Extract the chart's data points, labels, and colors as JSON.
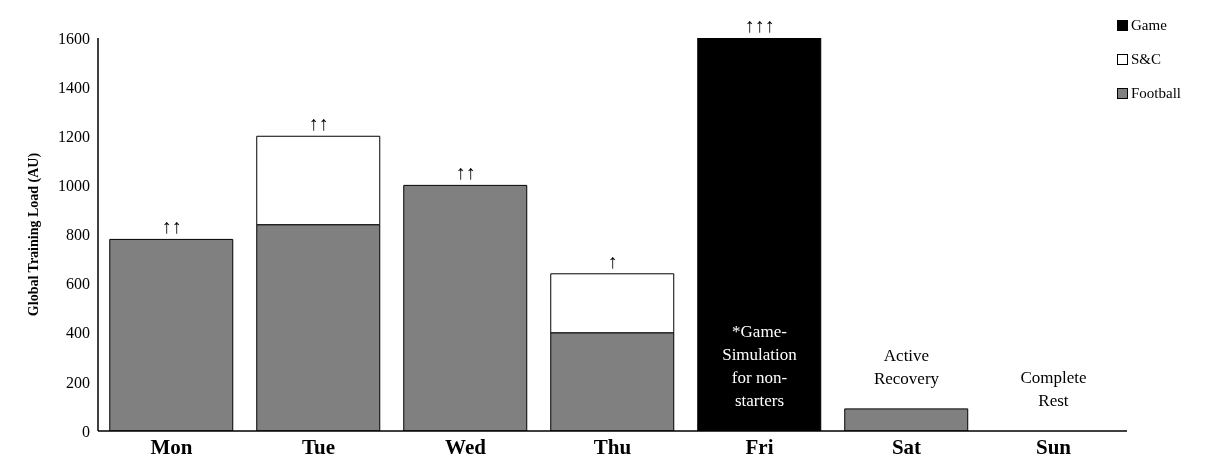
{
  "chart_data": {
    "type": "bar",
    "stacked": true,
    "ylabel": "Global Training Load (AU)",
    "categories": [
      "Mon",
      "Tue",
      "Wed",
      "Thu",
      "Fri",
      "Sat",
      "Sun"
    ],
    "series": [
      {
        "name": "Football",
        "color": "#808080",
        "values": [
          780,
          840,
          1000,
          400,
          null,
          90,
          0
        ]
      },
      {
        "name": "S&C",
        "color": "#ffffff",
        "values": [
          null,
          360,
          null,
          240,
          null,
          null,
          null
        ]
      },
      {
        "name": "Game",
        "color": "#000000",
        "values": [
          null,
          null,
          null,
          null,
          1600,
          null,
          null
        ]
      }
    ],
    "ylim": [
      0,
      1600
    ],
    "yticks": [
      0,
      200,
      400,
      600,
      800,
      1000,
      1200,
      1400,
      1600
    ],
    "legend": "top right",
    "grid": false,
    "annotations": [
      {
        "text": "↑↑",
        "x": "Mon",
        "y": 780
      },
      {
        "text": "↑↑",
        "x": "Tue",
        "y": 1200
      },
      {
        "text": "↑↑",
        "x": "Wed",
        "y": 1000
      },
      {
        "text": "↑",
        "x": "Thu",
        "y": 640
      },
      {
        "text": "↑↑↑",
        "x": "Fri",
        "y": 1600
      },
      "*Game-Simulation for non-starters",
      "Active Recovery",
      "Complete Rest"
    ]
  }
}
